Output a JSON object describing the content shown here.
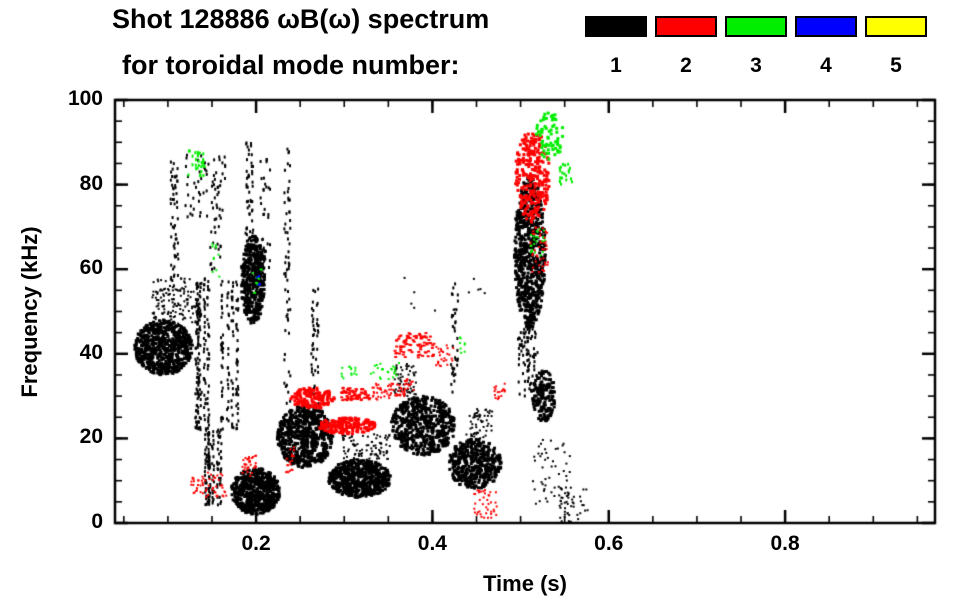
{
  "figure": {
    "title_line1": "Shot 128886 ωB(ω) spectrum",
    "title_line2": "for toroidal mode number:",
    "background": "#ffffff",
    "frame_color": "#000000"
  },
  "legend": {
    "entries": [
      {
        "label": "1",
        "color": "#000000"
      },
      {
        "label": "2",
        "color": "#ff0000"
      },
      {
        "label": "3",
        "color": "#00ee00"
      },
      {
        "label": "4",
        "color": "#0000ff"
      },
      {
        "label": "5",
        "color": "#ffff00"
      }
    ]
  },
  "chart_data": {
    "type": "scatter",
    "title": "Shot 128886 ωB(ω) spectrum for toroidal mode number: 1 2 3 4 5",
    "xlabel": "Time (s)",
    "ylabel": "Frequency (kHz)",
    "xlim": [
      0.04,
      0.97
    ],
    "ylim": [
      0,
      100
    ],
    "xticks": [
      0.2,
      0.4,
      0.6,
      0.8
    ],
    "xtick_labels": [
      "0.2",
      "0.4",
      "0.6",
      "0.8"
    ],
    "yticks": [
      0,
      20,
      40,
      60,
      80,
      100
    ],
    "ytick_labels": [
      "0",
      "20",
      "40",
      "60",
      "80",
      "100"
    ],
    "x_minor_step": 0.05,
    "y_minor_step": 5,
    "grid": false,
    "legend_position": "top-right",
    "series": [
      {
        "name": "1",
        "color": "#000000",
        "clusters": [
          {
            "shape": "ellipse",
            "t": [
              0.062,
              0.128
            ],
            "f": [
              35,
              48
            ],
            "n": 650,
            "size": [
              3,
              3
            ]
          },
          {
            "shape": "rect",
            "t": [
              0.082,
              0.13
            ],
            "f": [
              47,
              58
            ],
            "n": 130,
            "size": [
              2,
              2
            ]
          },
          {
            "shape": "rect",
            "t": [
              0.103,
              0.112
            ],
            "f": [
              55,
              88
            ],
            "n": 55,
            "size": [
              2,
              3
            ]
          },
          {
            "shape": "rect",
            "t": [
              0.12,
              0.165
            ],
            "f": [
              72,
              87
            ],
            "n": 55,
            "size": [
              2,
              3
            ]
          },
          {
            "shape": "vlines",
            "cols": 10,
            "t": [
              0.112,
              0.182
            ],
            "f": [
              22,
              58
            ],
            "n": 320,
            "size": [
              2,
              3
            ]
          },
          {
            "shape": "vlines",
            "cols": 6,
            "t": [
              0.132,
              0.172
            ],
            "f": [
              4,
              22
            ],
            "n": 130,
            "size": [
              2,
              3
            ]
          },
          {
            "shape": "rect",
            "t": [
              0.148,
              0.16
            ],
            "f": [
              58,
              80
            ],
            "n": 28,
            "size": [
              2,
              3
            ]
          },
          {
            "shape": "ellipse",
            "t": [
              0.183,
              0.21
            ],
            "f": [
              47,
              68
            ],
            "n": 420,
            "size": [
              3,
              3
            ]
          },
          {
            "shape": "rect",
            "t": [
              0.188,
              0.197
            ],
            "f": [
              68,
              90
            ],
            "n": 45,
            "size": [
              2,
              3
            ]
          },
          {
            "shape": "rect",
            "t": [
              0.205,
              0.216
            ],
            "f": [
              60,
              86
            ],
            "n": 35,
            "size": [
              2,
              3
            ]
          },
          {
            "shape": "ellipse",
            "t": [
              0.172,
              0.227
            ],
            "f": [
              2,
              13
            ],
            "n": 560,
            "size": [
              3,
              3
            ]
          },
          {
            "shape": "ellipse",
            "t": [
              0.224,
              0.287
            ],
            "f": [
              13,
              28
            ],
            "n": 640,
            "size": [
              3,
              3
            ]
          },
          {
            "shape": "rect",
            "t": [
              0.232,
              0.239
            ],
            "f": [
              28,
              90
            ],
            "n": 60,
            "size": [
              2,
              3
            ]
          },
          {
            "shape": "rect",
            "t": [
              0.262,
              0.271
            ],
            "f": [
              28,
              56
            ],
            "n": 45,
            "size": [
              2,
              3
            ]
          },
          {
            "shape": "ellipse",
            "t": [
              0.282,
              0.353
            ],
            "f": [
              6,
              15
            ],
            "n": 580,
            "size": [
              3,
              3
            ]
          },
          {
            "shape": "rect",
            "t": [
              0.298,
              0.352
            ],
            "f": [
              15,
              21
            ],
            "n": 85,
            "size": [
              2,
              2
            ]
          },
          {
            "shape": "ellipse",
            "t": [
              0.353,
              0.426
            ],
            "f": [
              16,
              30
            ],
            "n": 540,
            "size": [
              3,
              3
            ]
          },
          {
            "shape": "rect",
            "t": [
              0.356,
              0.382
            ],
            "f": [
              30,
              38
            ],
            "n": 60,
            "size": [
              2,
              2
            ]
          },
          {
            "shape": "rect",
            "t": [
              0.421,
              0.429
            ],
            "f": [
              30,
              57
            ],
            "n": 35,
            "size": [
              2,
              3
            ]
          },
          {
            "shape": "ellipse",
            "t": [
              0.418,
              0.478
            ],
            "f": [
              8,
              20
            ],
            "n": 430,
            "size": [
              3,
              3
            ]
          },
          {
            "shape": "rect",
            "t": [
              0.438,
              0.468
            ],
            "f": [
              20,
              27
            ],
            "n": 55,
            "size": [
              2,
              2
            ]
          },
          {
            "shape": "rect",
            "t": [
              0.36,
              0.46
            ],
            "f": [
              50,
              58
            ],
            "n": 12,
            "size": [
              2,
              2
            ]
          },
          {
            "shape": "ellipse",
            "t": [
              0.493,
              0.528
            ],
            "f": [
              46,
              82
            ],
            "n": 700,
            "size": [
              3,
              3
            ]
          },
          {
            "shape": "rect",
            "t": [
              0.497,
              0.521
            ],
            "f": [
              30,
              46
            ],
            "n": 85,
            "size": [
              2,
              3
            ]
          },
          {
            "shape": "ellipse",
            "t": [
              0.513,
              0.54
            ],
            "f": [
              24,
              36
            ],
            "n": 150,
            "size": [
              3,
              3
            ]
          },
          {
            "shape": "rect",
            "t": [
              0.513,
              0.556
            ],
            "f": [
              3,
              20
            ],
            "n": 60,
            "size": [
              2,
              2
            ]
          },
          {
            "shape": "rect",
            "t": [
              0.543,
              0.576
            ],
            "f": [
              0,
              9
            ],
            "n": 38,
            "size": [
              2,
              2
            ]
          }
        ]
      },
      {
        "name": "2",
        "color": "#ff0000",
        "clusters": [
          {
            "shape": "rect",
            "t": [
              0.126,
              0.168
            ],
            "f": [
              6,
              12
            ],
            "n": 55,
            "size": [
              2,
              2
            ]
          },
          {
            "shape": "rect",
            "t": [
              0.184,
              0.201
            ],
            "f": [
              11,
              16
            ],
            "n": 32,
            "size": [
              2,
              2
            ]
          },
          {
            "shape": "rect",
            "t": [
              0.234,
              0.243
            ],
            "f": [
              12,
              18
            ],
            "n": 18,
            "size": [
              2,
              2
            ]
          },
          {
            "shape": "ellipse",
            "t": [
              0.239,
              0.289
            ],
            "f": [
              27,
              32
            ],
            "n": 150,
            "size": [
              3,
              3
            ]
          },
          {
            "shape": "ellipse",
            "t": [
              0.271,
              0.336
            ],
            "f": [
              21,
              25
            ],
            "n": 180,
            "size": [
              3,
              3
            ]
          },
          {
            "shape": "rect",
            "t": [
              0.297,
              0.329
            ],
            "f": [
              29,
              32
            ],
            "n": 65,
            "size": [
              3,
              2
            ]
          },
          {
            "shape": "rect",
            "t": [
              0.331,
              0.353
            ],
            "f": [
              29,
              33
            ],
            "n": 30,
            "size": [
              2,
              2
            ]
          },
          {
            "shape": "rect",
            "t": [
              0.351,
              0.379
            ],
            "f": [
              30,
              34
            ],
            "n": 40,
            "size": [
              2,
              2
            ]
          },
          {
            "shape": "rect",
            "t": [
              0.357,
              0.403
            ],
            "f": [
              39,
              45
            ],
            "n": 85,
            "size": [
              3,
              2
            ]
          },
          {
            "shape": "rect",
            "t": [
              0.404,
              0.424
            ],
            "f": [
              37,
              42
            ],
            "n": 26,
            "size": [
              2,
              2
            ]
          },
          {
            "shape": "rect",
            "t": [
              0.47,
              0.483
            ],
            "f": [
              29,
              33
            ],
            "n": 18,
            "size": [
              2,
              2
            ]
          },
          {
            "shape": "rect",
            "t": [
              0.447,
              0.473
            ],
            "f": [
              1,
              8
            ],
            "n": 40,
            "size": [
              2,
              2
            ]
          },
          {
            "shape": "ellipse",
            "t": [
              0.494,
              0.533
            ],
            "f": [
              71,
              93
            ],
            "n": 270,
            "size": [
              3,
              3
            ]
          },
          {
            "shape": "rect",
            "t": [
              0.511,
              0.531
            ],
            "f": [
              59,
              70
            ],
            "n": 48,
            "size": [
              2,
              2
            ]
          }
        ]
      },
      {
        "name": "3",
        "color": "#00ee00",
        "clusters": [
          {
            "shape": "rect",
            "t": [
              0.123,
              0.143
            ],
            "f": [
              82,
              88
            ],
            "n": 28,
            "size": [
              2,
              3
            ]
          },
          {
            "shape": "rect",
            "t": [
              0.15,
              0.159
            ],
            "f": [
              58,
              66
            ],
            "n": 10,
            "size": [
              2,
              2
            ]
          },
          {
            "shape": "rect",
            "t": [
              0.195,
              0.207
            ],
            "f": [
              54,
              60
            ],
            "n": 12,
            "size": [
              2,
              2
            ]
          },
          {
            "shape": "rect",
            "t": [
              0.297,
              0.316
            ],
            "f": [
              34,
              37
            ],
            "n": 14,
            "size": [
              2,
              2
            ]
          },
          {
            "shape": "rect",
            "t": [
              0.329,
              0.363
            ],
            "f": [
              34,
              38
            ],
            "n": 24,
            "size": [
              2,
              2
            ]
          },
          {
            "shape": "rect",
            "t": [
              0.431,
              0.44
            ],
            "f": [
              40,
              44
            ],
            "n": 8,
            "size": [
              2,
              2
            ]
          },
          {
            "shape": "ellipse",
            "t": [
              0.517,
              0.549
            ],
            "f": [
              86,
              97
            ],
            "n": 65,
            "size": [
              3,
              3
            ]
          },
          {
            "shape": "rect",
            "t": [
              0.544,
              0.559
            ],
            "f": [
              80,
              85
            ],
            "n": 20,
            "size": [
              2,
              3
            ]
          },
          {
            "shape": "rect",
            "t": [
              0.511,
              0.529
            ],
            "f": [
              63,
              70
            ],
            "n": 22,
            "size": [
              2,
              2
            ]
          }
        ]
      },
      {
        "name": "4",
        "color": "#0000ff",
        "clusters": [
          {
            "shape": "rect",
            "t": [
              0.199,
              0.207
            ],
            "f": [
              56,
              59
            ],
            "n": 6,
            "size": [
              2,
              2
            ]
          }
        ]
      },
      {
        "name": "5",
        "color": "#ffff00",
        "clusters": []
      }
    ]
  }
}
